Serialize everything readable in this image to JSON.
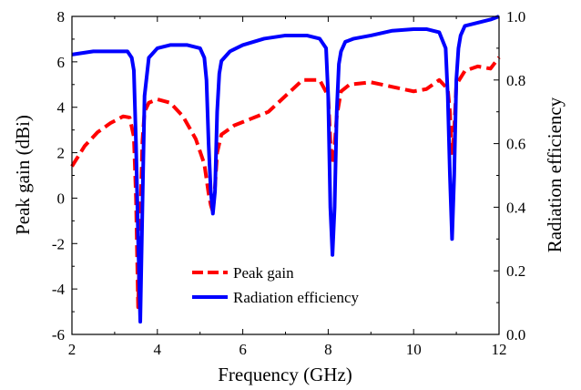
{
  "chart_data": {
    "type": "line",
    "xlabel": "Frequency (GHz)",
    "ylabel_left": "Peak gain (dBi)",
    "ylabel_right": "Radiation efficiency",
    "xlim": [
      2,
      12
    ],
    "ylim_left": [
      -6,
      8
    ],
    "ylim_right": [
      0.0,
      1.0
    ],
    "xticks": [
      "2",
      "4",
      "6",
      "8",
      "10",
      "12"
    ],
    "yticks_left": [
      "-6",
      "-4",
      "-2",
      "0",
      "2",
      "4",
      "6",
      "8"
    ],
    "yticks_right": [
      "0.0",
      "0.2",
      "0.4",
      "0.6",
      "0.8",
      "1.0"
    ],
    "legend_position": "bottom-center",
    "series": [
      {
        "name": "Peak gain",
        "axis": "left",
        "color": "#ff0000",
        "style": "dashed",
        "x": [
          2.0,
          2.3,
          2.6,
          2.9,
          3.2,
          3.35,
          3.45,
          3.5,
          3.55,
          3.6,
          3.65,
          3.7,
          3.8,
          4.0,
          4.3,
          4.6,
          4.9,
          5.1,
          5.2,
          5.25,
          5.3,
          5.35,
          5.4,
          5.5,
          5.8,
          6.2,
          6.6,
          7.0,
          7.4,
          7.8,
          8.0,
          8.05,
          8.1,
          8.15,
          8.2,
          8.3,
          8.5,
          9.0,
          9.5,
          10.0,
          10.3,
          10.6,
          10.8,
          10.85,
          10.9,
          10.95,
          11.0,
          11.2,
          11.5,
          11.8,
          12.0
        ],
        "values": [
          1.4,
          2.3,
          2.9,
          3.3,
          3.6,
          3.55,
          2.7,
          0.0,
          -4.8,
          -1.0,
          2.5,
          3.8,
          4.2,
          4.35,
          4.2,
          3.6,
          2.6,
          1.5,
          0.2,
          -0.3,
          -0.6,
          0.5,
          2.0,
          2.8,
          3.2,
          3.5,
          3.8,
          4.5,
          5.2,
          5.2,
          4.5,
          2.5,
          1.5,
          2.3,
          3.6,
          4.7,
          5.0,
          5.1,
          4.9,
          4.7,
          4.8,
          5.2,
          4.8,
          3.8,
          1.9,
          3.0,
          5.0,
          5.6,
          5.8,
          5.7,
          6.2
        ]
      },
      {
        "name": "Radiation efficiency",
        "axis": "right",
        "color": "#0000ff",
        "style": "solid",
        "x": [
          2.0,
          2.5,
          3.0,
          3.3,
          3.4,
          3.45,
          3.5,
          3.55,
          3.6,
          3.65,
          3.7,
          3.8,
          4.0,
          4.3,
          4.7,
          5.0,
          5.1,
          5.15,
          5.2,
          5.25,
          5.3,
          5.35,
          5.4,
          5.45,
          5.5,
          5.7,
          6.0,
          6.5,
          7.0,
          7.5,
          7.8,
          7.95,
          8.0,
          8.05,
          8.1,
          8.15,
          8.2,
          8.25,
          8.3,
          8.4,
          8.6,
          9.0,
          9.5,
          10.0,
          10.3,
          10.6,
          10.75,
          10.8,
          10.85,
          10.9,
          10.95,
          11.0,
          11.05,
          11.1,
          11.2,
          11.5,
          11.8,
          12.0
        ],
        "values": [
          0.88,
          0.89,
          0.89,
          0.89,
          0.87,
          0.83,
          0.6,
          0.3,
          0.04,
          0.4,
          0.75,
          0.87,
          0.9,
          0.91,
          0.91,
          0.9,
          0.87,
          0.8,
          0.6,
          0.45,
          0.38,
          0.45,
          0.7,
          0.82,
          0.86,
          0.89,
          0.91,
          0.93,
          0.94,
          0.94,
          0.93,
          0.9,
          0.75,
          0.4,
          0.25,
          0.4,
          0.7,
          0.85,
          0.89,
          0.92,
          0.93,
          0.94,
          0.955,
          0.96,
          0.96,
          0.95,
          0.9,
          0.75,
          0.5,
          0.3,
          0.5,
          0.8,
          0.9,
          0.94,
          0.97,
          0.98,
          0.99,
          1.0
        ]
      }
    ]
  }
}
